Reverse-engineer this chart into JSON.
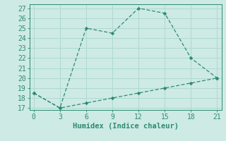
{
  "line1_x": [
    0,
    3,
    6,
    9,
    12,
    15,
    18,
    21
  ],
  "line1_y": [
    18.5,
    17,
    25,
    24.5,
    27,
    26.5,
    22,
    20
  ],
  "line2_x": [
    0,
    3,
    6,
    9,
    12,
    15,
    18,
    21
  ],
  "line2_y": [
    18.5,
    17,
    17.5,
    18.0,
    18.5,
    19.0,
    19.5,
    20
  ],
  "line_color": "#2e8b72",
  "bg_color": "#cdeae5",
  "grid_color": "#b0d8d2",
  "xlabel": "Humidex (Indice chaleur)",
  "xlim": [
    -0.5,
    21.5
  ],
  "ylim": [
    16.8,
    27.4
  ],
  "xticks": [
    0,
    3,
    6,
    9,
    12,
    15,
    18,
    21
  ],
  "yticks": [
    17,
    18,
    19,
    20,
    21,
    22,
    23,
    24,
    25,
    26,
    27
  ],
  "xlabel_fontsize": 7.5,
  "tick_fontsize": 7
}
